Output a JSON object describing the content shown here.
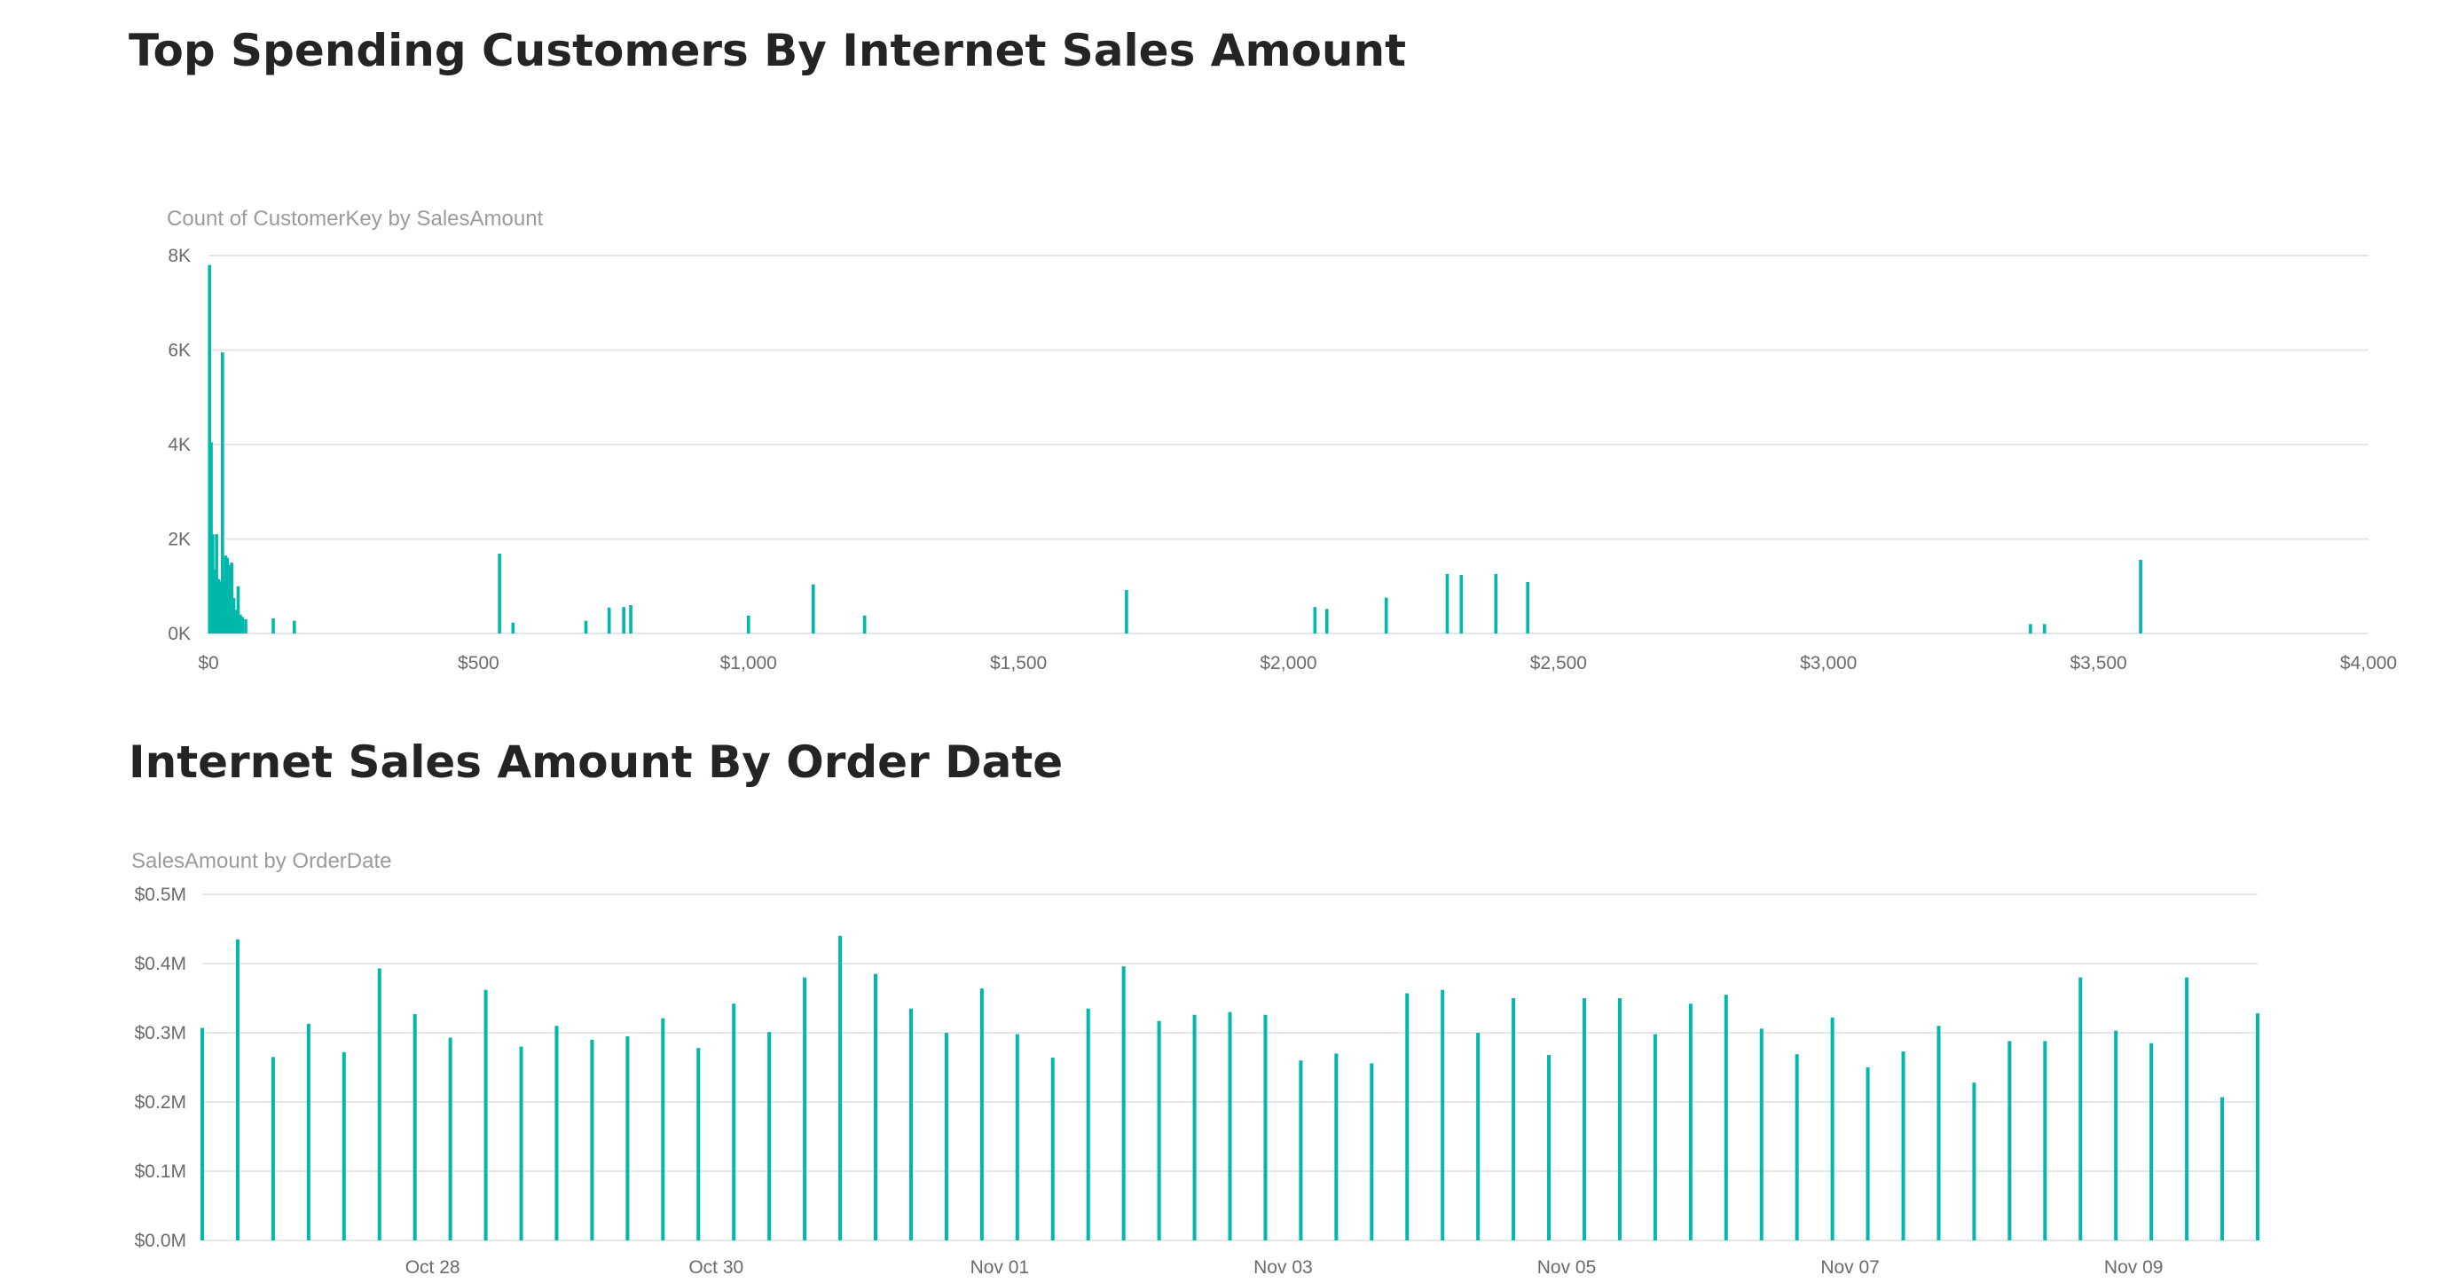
{
  "titles": {
    "top": "Top Spending Customers By Internet Sales Amount",
    "bottom": "Internet Sales Amount By Order Date"
  },
  "colors": {
    "bar": "#01b8aa",
    "grid": "#e6e6e6",
    "title": "#252423"
  },
  "chart_data": [
    {
      "type": "bar",
      "title": "Count of CustomerKey by SalesAmount",
      "xlabel": "SalesAmount",
      "ylabel": "Count of CustomerKey",
      "xlim": [
        0,
        4000
      ],
      "ylim": [
        0,
        8000
      ],
      "grid": true,
      "x_tick_labels": [
        "$0",
        "$500",
        "$1,000",
        "$1,500",
        "$2,000",
        "$2,500",
        "$3,000",
        "$3,500",
        "$4,000"
      ],
      "x_tick_values": [
        0,
        500,
        1000,
        1500,
        2000,
        2500,
        3000,
        3500,
        4000
      ],
      "y_tick_labels": [
        "0K",
        "2K",
        "4K",
        "6K",
        "8K"
      ],
      "y_tick_values": [
        0,
        2000,
        4000,
        6000,
        8000
      ],
      "x": [
        2,
        5,
        8,
        11,
        15,
        19,
        22,
        26,
        29,
        32,
        35,
        39,
        43,
        47,
        51,
        55,
        59,
        63,
        69,
        120,
        159,
        539,
        564,
        699,
        742,
        769,
        782,
        1000,
        1120,
        1215,
        1700,
        2049,
        2071,
        2181,
        2294,
        2320,
        2384,
        2443,
        3374,
        3400,
        3578
      ],
      "values": [
        7800,
        4050,
        2100,
        1350,
        2100,
        1150,
        1100,
        5950,
        1200,
        1650,
        1600,
        1450,
        1500,
        750,
        500,
        1000,
        400,
        350,
        300,
        320,
        270,
        1690,
        230,
        270,
        550,
        560,
        600,
        380,
        1040,
        380,
        920,
        560,
        520,
        760,
        1260,
        1240,
        1260,
        1090,
        200,
        200,
        1560
      ]
    },
    {
      "type": "bar",
      "title": "SalesAmount by OrderDate",
      "xlabel": "OrderDate",
      "ylabel": "SalesAmount",
      "ylim": [
        0,
        0.5
      ],
      "grid": true,
      "y_tick_labels": [
        "$0.0M",
        "$0.1M",
        "$0.2M",
        "$0.3M",
        "$0.4M",
        "$0.5M"
      ],
      "y_tick_values": [
        0,
        0.1,
        0.2,
        0.3,
        0.4,
        0.5
      ],
      "x_tick_labels": [
        "Oct 28",
        "Oct 30",
        "Nov 01",
        "Nov 03",
        "Nov 05",
        "Nov 07",
        "Nov 09"
      ],
      "x_tick_dates": [
        "2019-10-28",
        "2019-10-30",
        "2019-11-01",
        "2019-11-03",
        "2019-11-05",
        "2019-11-07",
        "2019-11-09"
      ],
      "x_range": [
        "2019-10-26T09:00",
        "2019-11-09T21:00"
      ],
      "x": [
        "2019-10-26T09:00",
        "2019-10-26T15:00",
        "2019-10-26T21:00",
        "2019-10-27T03:00",
        "2019-10-27T09:00",
        "2019-10-27T15:00",
        "2019-10-27T21:00",
        "2019-10-28T03:00",
        "2019-10-28T09:00",
        "2019-10-28T15:00",
        "2019-10-28T21:00",
        "2019-10-29T03:00",
        "2019-10-29T09:00",
        "2019-10-29T15:00",
        "2019-10-29T21:00",
        "2019-10-30T03:00",
        "2019-10-30T09:00",
        "2019-10-30T15:00",
        "2019-10-30T21:00",
        "2019-10-31T03:00",
        "2019-10-31T09:00",
        "2019-10-31T15:00",
        "2019-10-31T21:00",
        "2019-11-01T03:00",
        "2019-11-01T09:00",
        "2019-11-01T15:00",
        "2019-11-01T21:00",
        "2019-11-02T03:00",
        "2019-11-02T09:00",
        "2019-11-02T15:00",
        "2019-11-02T21:00",
        "2019-11-03T03:00",
        "2019-11-03T09:00",
        "2019-11-03T15:00",
        "2019-11-03T21:00",
        "2019-11-04T03:00",
        "2019-11-04T09:00",
        "2019-11-04T15:00",
        "2019-11-04T21:00",
        "2019-11-05T03:00",
        "2019-11-05T09:00",
        "2019-11-05T15:00",
        "2019-11-05T21:00",
        "2019-11-06T03:00",
        "2019-11-06T09:00",
        "2019-11-06T15:00",
        "2019-11-06T21:00",
        "2019-11-07T03:00",
        "2019-11-07T09:00",
        "2019-11-07T15:00",
        "2019-11-07T21:00",
        "2019-11-08T03:00",
        "2019-11-08T09:00",
        "2019-11-08T15:00",
        "2019-11-08T21:00",
        "2019-11-09T03:00",
        "2019-11-09T09:00",
        "2019-11-09T15:00",
        "2019-11-09T21:00"
      ],
      "values": [
        0.307,
        0.435,
        0.265,
        0.313,
        0.272,
        0.393,
        0.327,
        0.293,
        0.362,
        0.28,
        0.31,
        0.29,
        0.295,
        0.321,
        0.278,
        0.342,
        0.301,
        0.38,
        0.44,
        0.385,
        0.335,
        0.3,
        0.364,
        0.298,
        0.264,
        0.335,
        0.396,
        0.317,
        0.326,
        0.33,
        0.326,
        0.26,
        0.27,
        0.256,
        0.357,
        0.362,
        0.3,
        0.35,
        0.268,
        0.35,
        0.35,
        0.298,
        0.342,
        0.355,
        0.306,
        0.269,
        0.322,
        0.25,
        0.273,
        0.31,
        0.228,
        0.288,
        0.288,
        0.38,
        0.303,
        0.285,
        0.38,
        0.207,
        0.328
      ]
    }
  ]
}
